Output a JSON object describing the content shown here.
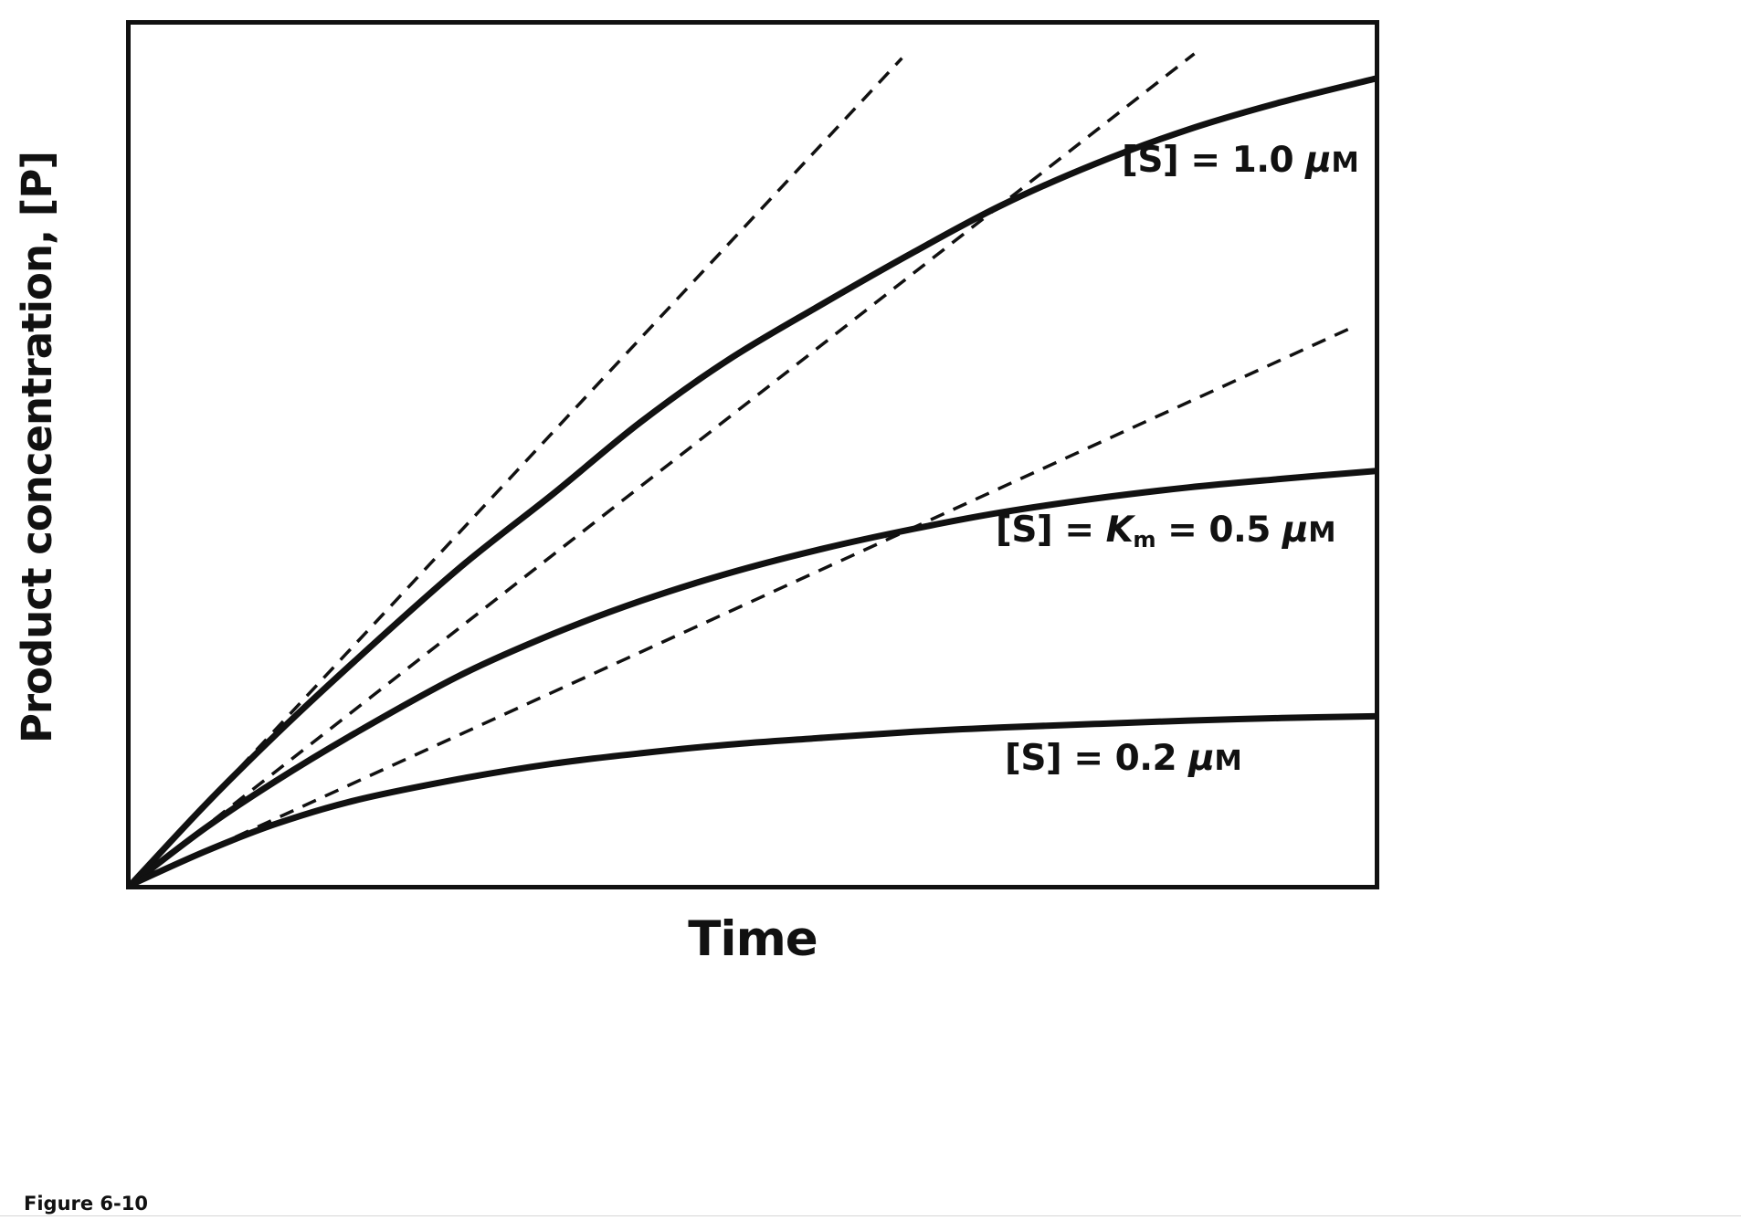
{
  "figure": {
    "caption": "Figure 6-10"
  },
  "colors": {
    "ink": "#111111",
    "background": "#ffffff",
    "rule": "#d6d6d6"
  },
  "labels": {
    "s10": {
      "pre": "[S] = 1.0 ",
      "mu": "μ",
      "unit": "M"
    },
    "km": {
      "pre": "[S] = ",
      "k": "K",
      "sub": "m",
      "mid": " = 0.5 ",
      "mu": "μ",
      "unit": "M"
    },
    "s02": {
      "pre": "[S] = 0.2 ",
      "mu": "μ",
      "unit": "M"
    }
  },
  "chart_data": {
    "type": "line",
    "title": "",
    "xlabel": "Time",
    "ylabel": "Product concentration, [P]",
    "x_range": [
      0,
      1
    ],
    "y_range": [
      0,
      1
    ],
    "grid": false,
    "legend": "inline labels on curves",
    "description": "Enzyme-kinetics progress curves: product concentration [P] versus time for three substrate concentrations. Dashed straight lines are tangents at t = 0 showing the initial rate for each curve. Axes are unlabeled (arbitrary units); values below are normalized fractions of the plot range.",
    "series": [
      {
        "label": "[S] = 1.0 μM",
        "substrate_uM": 1.0,
        "initial_slope": 1.55,
        "final_value": 0.937,
        "x": [
          0,
          0.06,
          0.117,
          0.18,
          0.264,
          0.34,
          0.41,
          0.48,
          0.557,
          0.63,
          0.7,
          0.775,
          0.85,
          0.925,
          1.0
        ],
        "y": [
          0,
          0.093,
          0.175,
          0.26,
          0.368,
          0.455,
          0.538,
          0.61,
          0.676,
          0.736,
          0.79,
          0.838,
          0.878,
          0.91,
          0.937
        ]
      },
      {
        "label": "[S] = Km = 0.5 μM",
        "substrate_uM": 0.5,
        "initial_slope": 1.13,
        "final_value": 0.481,
        "x": [
          0,
          0.06,
          0.117,
          0.18,
          0.264,
          0.34,
          0.41,
          0.48,
          0.557,
          0.63,
          0.7,
          0.775,
          0.85,
          0.925,
          1.0
        ],
        "y": [
          0,
          0.066,
          0.121,
          0.176,
          0.243,
          0.292,
          0.33,
          0.362,
          0.391,
          0.414,
          0.433,
          0.449,
          0.462,
          0.472,
          0.481
        ]
      },
      {
        "label": "[S] = 0.2 μM",
        "substrate_uM": 0.2,
        "initial_slope": 0.66,
        "final_value": 0.196,
        "x": [
          0,
          0.06,
          0.117,
          0.18,
          0.264,
          0.34,
          0.41,
          0.48,
          0.557,
          0.63,
          0.7,
          0.775,
          0.85,
          0.925,
          1.0
        ],
        "y": [
          0,
          0.039,
          0.071,
          0.098,
          0.123,
          0.141,
          0.153,
          0.163,
          0.171,
          0.178,
          0.183,
          0.187,
          0.191,
          0.194,
          0.196
        ]
      }
    ],
    "tangents": [
      {
        "for": "[S] = 1.0 μM",
        "slope": 1.55,
        "t_start": 0.02,
        "t_end": 0.62
      },
      {
        "for": "[S] = Km = 0.5 μM",
        "slope": 1.13,
        "t_start": 0.02,
        "t_end": 0.855
      },
      {
        "for": "[S] = 0.2 μM",
        "slope": 0.66,
        "t_start": 0.03,
        "t_end": 0.98
      }
    ],
    "style": {
      "curve_width": 7,
      "tangent_width": 3.5,
      "dash": "16 11"
    }
  }
}
